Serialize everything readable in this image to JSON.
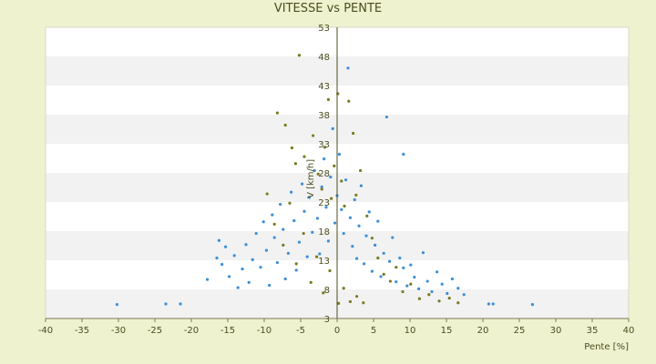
{
  "chart_data": {
    "type": "scatter",
    "title": "VITESSE vs PENTE",
    "xlabel": "Pente [%]",
    "ylabel": "V [km/h]",
    "xlim": [
      -40,
      40
    ],
    "ylim": [
      3,
      53
    ],
    "x_ticks": [
      "-40",
      "-35",
      "-30",
      "-25",
      "-20",
      "-15",
      "-10",
      "-5",
      "0",
      "5",
      "10",
      "15",
      "20",
      "25",
      "30",
      "35",
      "40"
    ],
    "y_ticks": [
      "3",
      "8",
      "13",
      "18",
      "23",
      "28",
      "33",
      "38",
      "43",
      "48",
      "53"
    ],
    "grid": "alternating horizontal bands",
    "legend": "none",
    "colors": {
      "series_blue": "#3b8fd6",
      "series_olive": "#7a7a1e",
      "band_light": "#f2f2f2",
      "band_white": "#ffffff",
      "background": "#eef2cf"
    },
    "series": [
      {
        "color": "#3b8fd6",
        "points": [
          [
            -30.2,
            5.4
          ],
          [
            -23.5,
            5.5
          ],
          [
            -21.5,
            5.5
          ],
          [
            -17.8,
            9.7
          ],
          [
            -16.5,
            13.4
          ],
          [
            -16.2,
            16.4
          ],
          [
            -15.8,
            12.3
          ],
          [
            -15.3,
            15.3
          ],
          [
            -14.8,
            10.2
          ],
          [
            -14.1,
            13.8
          ],
          [
            -13.6,
            8.3
          ],
          [
            -13.0,
            11.5
          ],
          [
            -12.5,
            15.7
          ],
          [
            -12.1,
            9.2
          ],
          [
            -11.6,
            13.1
          ],
          [
            -11.1,
            17.6
          ],
          [
            -10.5,
            11.8
          ],
          [
            -10.1,
            19.6
          ],
          [
            -9.7,
            14.7
          ],
          [
            -9.3,
            8.7
          ],
          [
            -8.9,
            20.8
          ],
          [
            -8.6,
            16.9
          ],
          [
            -8.2,
            12.6
          ],
          [
            -7.8,
            22.6
          ],
          [
            -7.4,
            18.3
          ],
          [
            -7.1,
            9.8
          ],
          [
            -6.7,
            14.2
          ],
          [
            -6.3,
            24.7
          ],
          [
            -5.9,
            19.8
          ],
          [
            -5.6,
            11.3
          ],
          [
            -5.2,
            16.1
          ],
          [
            -4.8,
            26.1
          ],
          [
            -4.5,
            21.4
          ],
          [
            -4.1,
            13.6
          ],
          [
            -3.8,
            23.8
          ],
          [
            -3.4,
            17.8
          ],
          [
            -3.1,
            28.4
          ],
          [
            -2.7,
            20.2
          ],
          [
            -2.4,
            14.1
          ],
          [
            -2.1,
            25.6
          ],
          [
            -1.8,
            30.4
          ],
          [
            -1.5,
            22.1
          ],
          [
            -1.2,
            16.3
          ],
          [
            -0.9,
            27.3
          ],
          [
            -0.6,
            35.6
          ],
          [
            -0.3,
            19.4
          ],
          [
            0.0,
            24.1
          ],
          [
            0.3,
            31.2
          ],
          [
            0.6,
            21.7
          ],
          [
            0.9,
            17.6
          ],
          [
            1.2,
            26.8
          ],
          [
            1.5,
            46.0
          ],
          [
            1.8,
            20.3
          ],
          [
            2.1,
            15.4
          ],
          [
            2.4,
            23.4
          ],
          [
            2.7,
            13.3
          ],
          [
            3.0,
            18.9
          ],
          [
            3.3,
            25.8
          ],
          [
            3.7,
            12.4
          ],
          [
            4.0,
            17.2
          ],
          [
            4.4,
            21.3
          ],
          [
            4.8,
            11.1
          ],
          [
            5.2,
            15.6
          ],
          [
            5.6,
            19.7
          ],
          [
            6.0,
            10.2
          ],
          [
            6.4,
            14.2
          ],
          [
            6.8,
            37.6
          ],
          [
            7.2,
            12.8
          ],
          [
            7.6,
            16.9
          ],
          [
            8.1,
            9.3
          ],
          [
            8.6,
            13.4
          ],
          [
            9.1,
            11.7
          ],
          [
            9.1,
            31.2
          ],
          [
            9.6,
            8.6
          ],
          [
            10.1,
            12.2
          ],
          [
            10.6,
            10.1
          ],
          [
            11.2,
            8.1
          ],
          [
            11.8,
            14.3
          ],
          [
            12.4,
            9.4
          ],
          [
            13.0,
            7.6
          ],
          [
            13.7,
            11.0
          ],
          [
            14.4,
            8.9
          ],
          [
            15.1,
            7.3
          ],
          [
            15.8,
            9.8
          ],
          [
            16.6,
            8.2
          ],
          [
            17.4,
            7.1
          ],
          [
            20.8,
            5.5
          ],
          [
            21.4,
            5.5
          ],
          [
            26.8,
            5.4
          ]
        ]
      },
      {
        "color": "#7a7a1e",
        "points": [
          [
            -5.2,
            48.2
          ],
          [
            -8.2,
            38.3
          ],
          [
            -7.1,
            36.2
          ],
          [
            -6.2,
            32.3
          ],
          [
            -5.7,
            29.6
          ],
          [
            -4.5,
            30.8
          ],
          [
            -3.3,
            34.4
          ],
          [
            -2.6,
            27.8
          ],
          [
            -2.1,
            25.2
          ],
          [
            -1.7,
            32.4
          ],
          [
            -1.2,
            40.6
          ],
          [
            -0.8,
            23.6
          ],
          [
            -0.4,
            29.2
          ],
          [
            0.1,
            41.6
          ],
          [
            0.6,
            26.6
          ],
          [
            1.0,
            22.3
          ],
          [
            1.6,
            40.3
          ],
          [
            2.2,
            34.8
          ],
          [
            2.6,
            24.2
          ],
          [
            3.2,
            28.4
          ],
          [
            4.1,
            20.6
          ],
          [
            4.8,
            16.8
          ],
          [
            5.6,
            13.4
          ],
          [
            6.4,
            10.6
          ],
          [
            7.3,
            9.4
          ],
          [
            8.1,
            11.8
          ],
          [
            9.0,
            7.6
          ],
          [
            10.1,
            8.9
          ],
          [
            11.3,
            6.4
          ],
          [
            12.6,
            7.1
          ],
          [
            14.0,
            6.0
          ],
          [
            15.4,
            6.5
          ],
          [
            16.6,
            5.7
          ],
          [
            -9.6,
            24.4
          ],
          [
            -8.6,
            19.2
          ],
          [
            -7.4,
            15.6
          ],
          [
            -6.5,
            22.8
          ],
          [
            -5.6,
            12.4
          ],
          [
            -4.6,
            17.6
          ],
          [
            -3.6,
            9.2
          ],
          [
            -2.8,
            13.6
          ],
          [
            -1.9,
            7.4
          ],
          [
            -1.0,
            11.2
          ],
          [
            0.2,
            5.6
          ],
          [
            0.9,
            8.2
          ],
          [
            1.8,
            5.9
          ],
          [
            2.7,
            6.8
          ],
          [
            3.6,
            5.7
          ]
        ]
      }
    ]
  }
}
